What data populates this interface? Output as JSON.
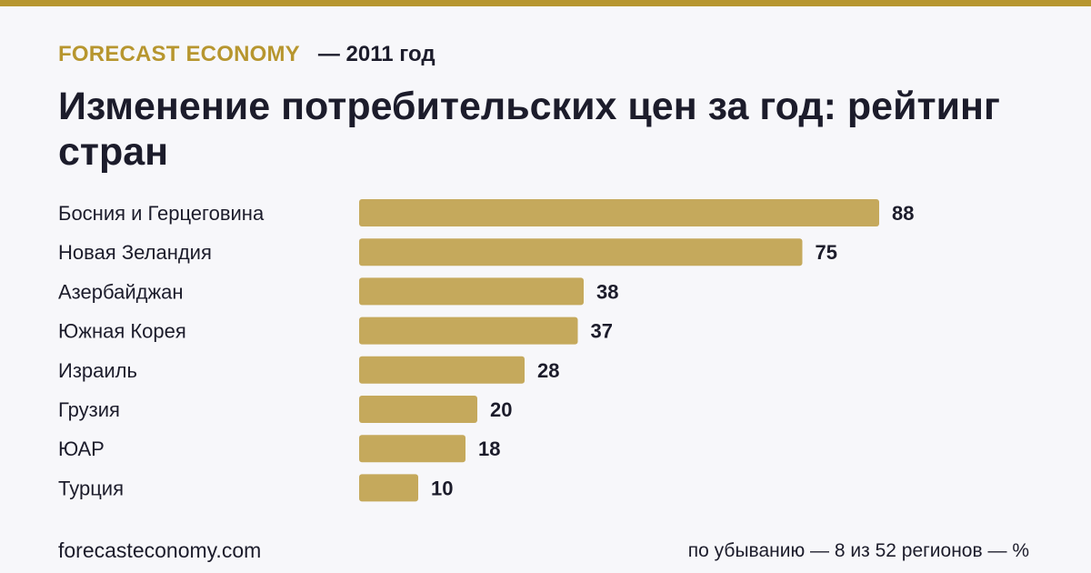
{
  "header": {
    "brand": "FORECAST ECONOMY",
    "year": "— 2011 год",
    "title": "Изменение потребительских цен за год: рейтинг стран"
  },
  "footer": {
    "site": "forecasteconomy.com",
    "note": "по убыванию — 8 из 52 регионов — %"
  },
  "colors": {
    "accent": "#b7962f",
    "bar": "#c5a95c",
    "text": "#1c1c2b",
    "background": "#f7f7fa"
  },
  "chart_data": {
    "type": "bar",
    "orientation": "horizontal",
    "categories": [
      "Босния и Герцеговина",
      "Новая Зеландия",
      "Азербайджан",
      "Южная Корея",
      "Израиль",
      "Грузия",
      "ЮАР",
      "Турция"
    ],
    "values": [
      88,
      75,
      38,
      37,
      28,
      20,
      18,
      10
    ],
    "value_labels": [
      "88",
      "75",
      "38",
      "37",
      "28",
      "20",
      "18",
      "10"
    ],
    "xlim": [
      0,
      88
    ],
    "grid": false,
    "legend": "none"
  }
}
